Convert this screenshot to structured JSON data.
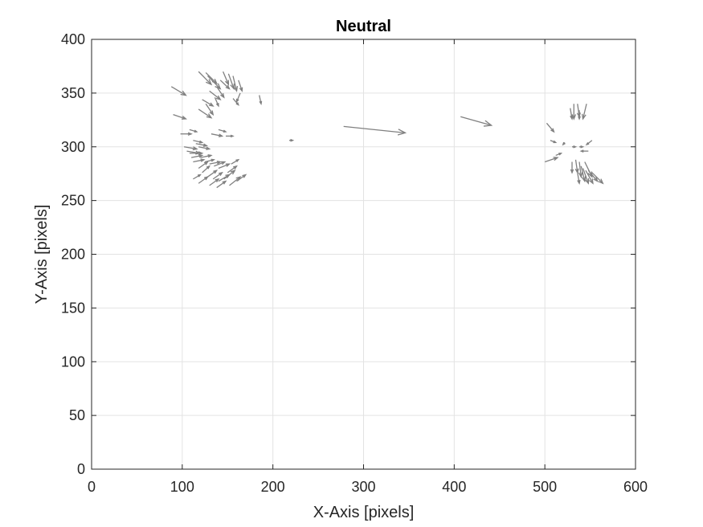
{
  "chart_data": {
    "type": "quiver",
    "title": "Neutral",
    "xlabel": "X-Axis [pixels]",
    "ylabel": "Y-Axis [pixels]",
    "xlim": [
      0,
      600
    ],
    "ylim": [
      0,
      400
    ],
    "xticks": [
      0,
      100,
      200,
      300,
      400,
      500,
      600
    ],
    "yticks": [
      0,
      50,
      100,
      150,
      200,
      250,
      300,
      350,
      400
    ],
    "xtick_labels": [
      "0",
      "100",
      "200",
      "300",
      "400",
      "500",
      "600"
    ],
    "ytick_labels": [
      "0",
      "50",
      "100",
      "150",
      "200",
      "250",
      "300",
      "350",
      "400"
    ],
    "grid": true,
    "arrow_color": "#808080",
    "vectors": [
      {
        "x": 88,
        "y": 356,
        "u": 16,
        "v": -8
      },
      {
        "x": 90,
        "y": 330,
        "u": 14,
        "v": -4
      },
      {
        "x": 98,
        "y": 312,
        "u": 12,
        "v": 0
      },
      {
        "x": 118,
        "y": 370,
        "u": 14,
        "v": -12
      },
      {
        "x": 126,
        "y": 369,
        "u": 12,
        "v": -10
      },
      {
        "x": 128,
        "y": 366,
        "u": 14,
        "v": -12
      },
      {
        "x": 130,
        "y": 352,
        "u": 12,
        "v": -8
      },
      {
        "x": 138,
        "y": 356,
        "u": 8,
        "v": -10
      },
      {
        "x": 142,
        "y": 362,
        "u": 10,
        "v": -8
      },
      {
        "x": 118,
        "y": 335,
        "u": 14,
        "v": -8
      },
      {
        "x": 122,
        "y": 344,
        "u": 12,
        "v": -6
      },
      {
        "x": 126,
        "y": 340,
        "u": 8,
        "v": -10
      },
      {
        "x": 145,
        "y": 370,
        "u": 6,
        "v": -12
      },
      {
        "x": 151,
        "y": 368,
        "u": 6,
        "v": -14
      },
      {
        "x": 156,
        "y": 366,
        "u": 4,
        "v": -14
      },
      {
        "x": 162,
        "y": 362,
        "u": 4,
        "v": -10
      },
      {
        "x": 156,
        "y": 345,
        "u": 6,
        "v": -6
      },
      {
        "x": 164,
        "y": 350,
        "u": -4,
        "v": -8
      },
      {
        "x": 185,
        "y": 348,
        "u": 2,
        "v": -8
      },
      {
        "x": 136,
        "y": 346,
        "u": 4,
        "v": -8
      },
      {
        "x": 108,
        "y": 316,
        "u": 8,
        "v": -2
      },
      {
        "x": 112,
        "y": 306,
        "u": 10,
        "v": -2
      },
      {
        "x": 115,
        "y": 303,
        "u": 12,
        "v": -2
      },
      {
        "x": 118,
        "y": 300,
        "u": 12,
        "v": -2
      },
      {
        "x": 102,
        "y": 300,
        "u": 14,
        "v": -2
      },
      {
        "x": 105,
        "y": 296,
        "u": 14,
        "v": -2
      },
      {
        "x": 108,
        "y": 294,
        "u": 14,
        "v": 0
      },
      {
        "x": 110,
        "y": 290,
        "u": 12,
        "v": 2
      },
      {
        "x": 112,
        "y": 286,
        "u": 12,
        "v": 2
      },
      {
        "x": 120,
        "y": 290,
        "u": 12,
        "v": 2
      },
      {
        "x": 125,
        "y": 286,
        "u": 10,
        "v": 2
      },
      {
        "x": 130,
        "y": 284,
        "u": 12,
        "v": 2
      },
      {
        "x": 135,
        "y": 282,
        "u": 12,
        "v": 4
      },
      {
        "x": 140,
        "y": 280,
        "u": 12,
        "v": 4
      },
      {
        "x": 118,
        "y": 280,
        "u": 10,
        "v": 6
      },
      {
        "x": 122,
        "y": 276,
        "u": 8,
        "v": 6
      },
      {
        "x": 128,
        "y": 272,
        "u": 10,
        "v": 6
      },
      {
        "x": 134,
        "y": 270,
        "u": 10,
        "v": 6
      },
      {
        "x": 140,
        "y": 268,
        "u": 12,
        "v": 6
      },
      {
        "x": 146,
        "y": 270,
        "u": 12,
        "v": 8
      },
      {
        "x": 150,
        "y": 276,
        "u": 10,
        "v": 6
      },
      {
        "x": 154,
        "y": 284,
        "u": 8,
        "v": 4
      },
      {
        "x": 112,
        "y": 270,
        "u": 8,
        "v": 4
      },
      {
        "x": 118,
        "y": 266,
        "u": 10,
        "v": 6
      },
      {
        "x": 130,
        "y": 264,
        "u": 10,
        "v": 6
      },
      {
        "x": 138,
        "y": 262,
        "u": 10,
        "v": 6
      },
      {
        "x": 152,
        "y": 264,
        "u": 12,
        "v": 8
      },
      {
        "x": 160,
        "y": 268,
        "u": 10,
        "v": 6
      },
      {
        "x": 132,
        "y": 312,
        "u": 12,
        "v": -2
      },
      {
        "x": 140,
        "y": 316,
        "u": 8,
        "v": -2
      },
      {
        "x": 148,
        "y": 310,
        "u": 8,
        "v": 0
      },
      {
        "x": 218,
        "y": 306,
        "u": 4,
        "v": 0
      },
      {
        "x": 278,
        "y": 319,
        "u": 68,
        "v": -6
      },
      {
        "x": 407,
        "y": 328,
        "u": 34,
        "v": -8
      },
      {
        "x": 502,
        "y": 322,
        "u": 8,
        "v": -8
      },
      {
        "x": 506,
        "y": 306,
        "u": 6,
        "v": -2
      },
      {
        "x": 500,
        "y": 286,
        "u": 14,
        "v": 4
      },
      {
        "x": 512,
        "y": 292,
        "u": 6,
        "v": 2
      },
      {
        "x": 522,
        "y": 304,
        "u": -2,
        "v": -2
      },
      {
        "x": 528,
        "y": 336,
        "u": 2,
        "v": -10
      },
      {
        "x": 532,
        "y": 340,
        "u": 0,
        "v": -14
      },
      {
        "x": 536,
        "y": 340,
        "u": 2,
        "v": -12
      },
      {
        "x": 538,
        "y": 334,
        "u": 0,
        "v": -8
      },
      {
        "x": 546,
        "y": 340,
        "u": -4,
        "v": -14
      },
      {
        "x": 552,
        "y": 306,
        "u": -6,
        "v": -4
      },
      {
        "x": 548,
        "y": 296,
        "u": -8,
        "v": 0
      },
      {
        "x": 530,
        "y": 300,
        "u": 4,
        "v": 0
      },
      {
        "x": 538,
        "y": 300,
        "u": 4,
        "v": 0
      },
      {
        "x": 530,
        "y": 286,
        "u": 0,
        "v": -10
      },
      {
        "x": 534,
        "y": 288,
        "u": 2,
        "v": -12
      },
      {
        "x": 538,
        "y": 286,
        "u": 2,
        "v": -14
      },
      {
        "x": 540,
        "y": 282,
        "u": 4,
        "v": -14
      },
      {
        "x": 542,
        "y": 280,
        "u": 6,
        "v": -14
      },
      {
        "x": 545,
        "y": 278,
        "u": 8,
        "v": -12
      },
      {
        "x": 548,
        "y": 278,
        "u": 10,
        "v": -10
      },
      {
        "x": 552,
        "y": 276,
        "u": 12,
        "v": -10
      },
      {
        "x": 544,
        "y": 286,
        "u": 8,
        "v": -14
      },
      {
        "x": 536,
        "y": 276,
        "u": 2,
        "v": -10
      }
    ]
  }
}
